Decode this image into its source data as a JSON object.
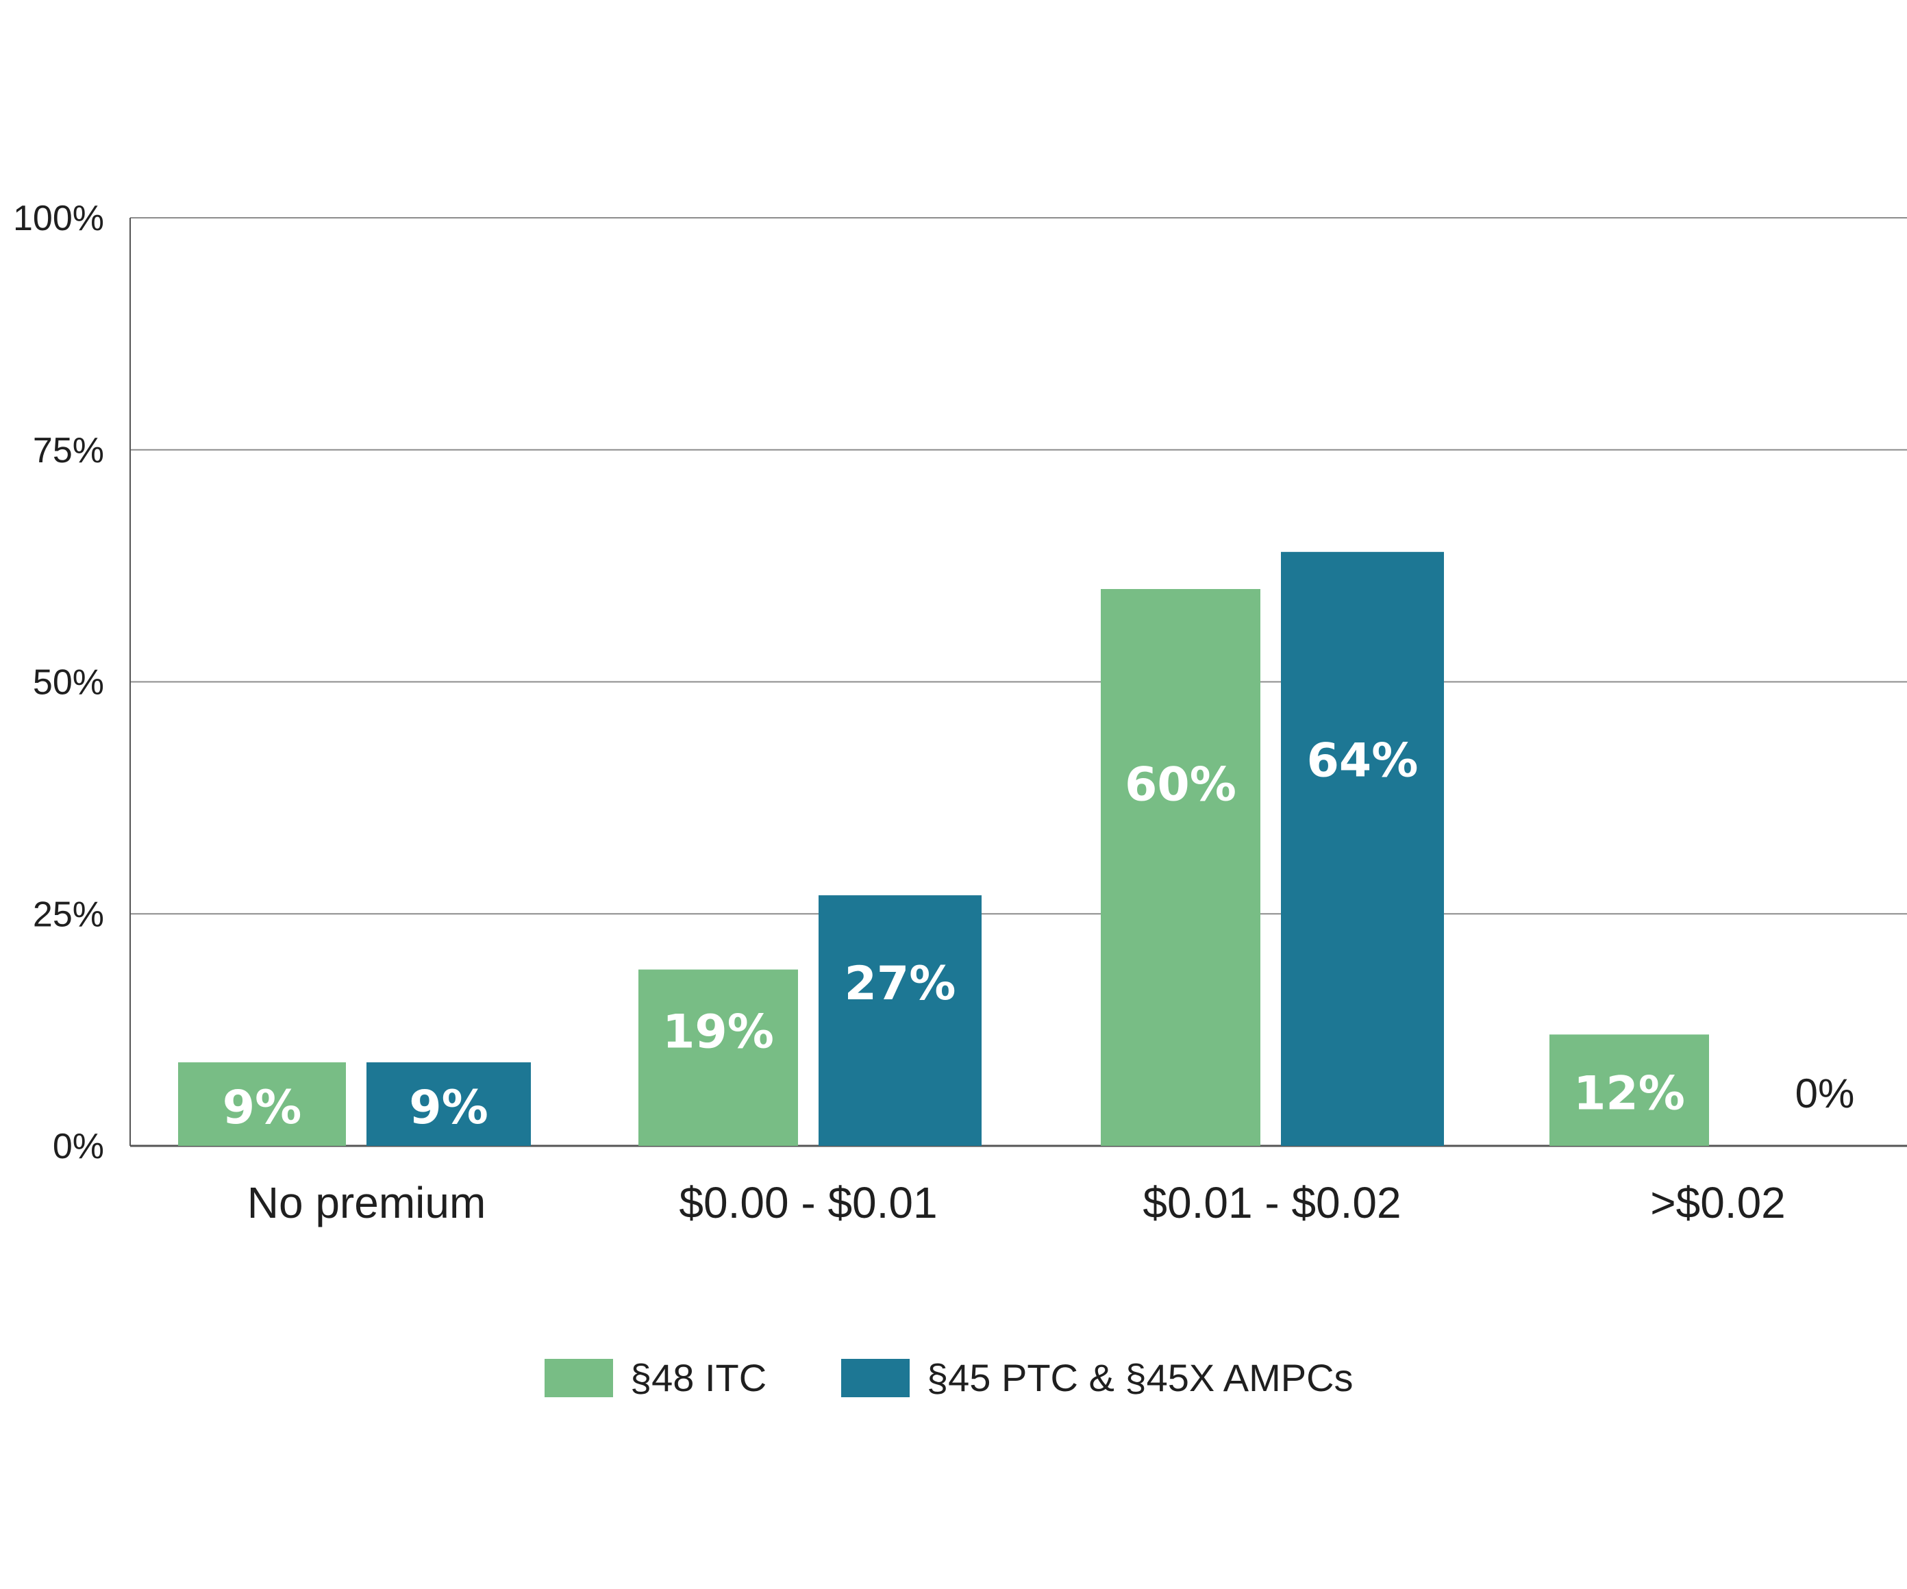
{
  "chart_data": {
    "type": "bar",
    "categories": [
      "No premium",
      "$0.00 - $0.01",
      "$0.01 - $0.02",
      ">$0.02"
    ],
    "series": [
      {
        "name": "§48 ITC",
        "color": "#78bd85",
        "values": [
          9,
          19,
          60,
          12
        ],
        "labels": [
          "9%",
          "19%",
          "60%",
          "12%"
        ]
      },
      {
        "name": "§45 PTC & §45X AMPCs",
        "color": "#1d7794",
        "values": [
          9,
          27,
          64,
          0
        ],
        "labels": [
          "9%",
          "27%",
          "64%",
          "0%"
        ]
      }
    ],
    "ylim": [
      0,
      100
    ],
    "yticks": [
      0,
      25,
      50,
      75,
      100
    ],
    "ytick_labels": [
      "0%",
      "25%",
      "50%",
      "75%",
      "100%"
    ],
    "grid": true,
    "legend_position": "bottom"
  }
}
